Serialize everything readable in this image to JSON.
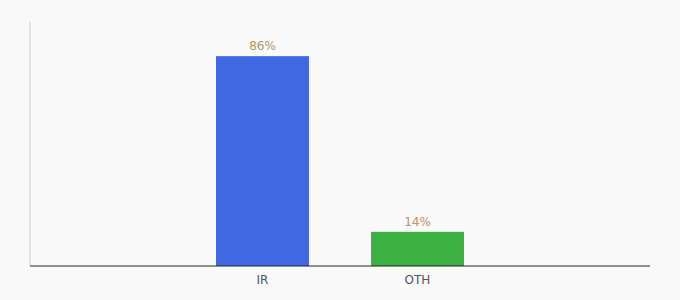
{
  "chart_data": {
    "type": "bar",
    "categories": [
      "IR",
      "OTH"
    ],
    "values": [
      86,
      14
    ],
    "value_labels": [
      "86%",
      "14%"
    ],
    "colors": [
      "#4169E1",
      "#3CB043"
    ],
    "ylim": [
      0,
      100
    ],
    "data_labels": true,
    "tick_labels": "x"
  }
}
